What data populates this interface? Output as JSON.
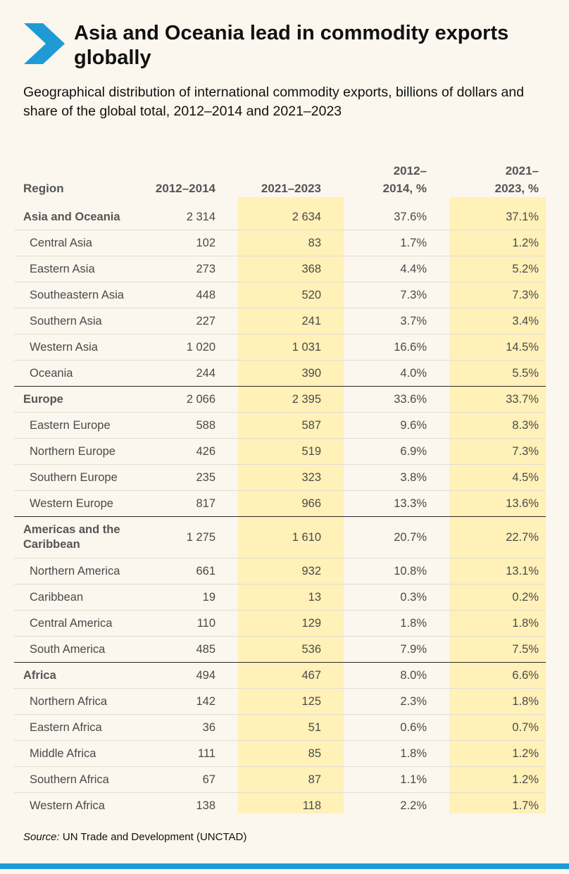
{
  "title": "Asia and Oceania lead in commodity exports globally",
  "subtitle": "Geographical distribution of international commodity exports, billions of dollars and share of the global total, 2012–2014 and 2021–2023",
  "brand_color": "#1E9BD7",
  "highlight_color": "#FFF1B8",
  "source_label": "Source:",
  "source_text": " UN Trade and Development (UNCTAD)",
  "chart_data": {
    "type": "table",
    "columns": [
      "Region",
      "2012–2014",
      "2021–2023",
      "2012–\n2014, %",
      "2021–\n2023, %"
    ],
    "rows": [
      {
        "region": "Asia and Oceania",
        "group": true,
        "v1": "2 314",
        "v2": "2 634",
        "p1": "37.6%",
        "p2": "37.1%"
      },
      {
        "region": "Central Asia",
        "group": false,
        "v1": "102",
        "v2": "83",
        "p1": "1.7%",
        "p2": "1.2%"
      },
      {
        "region": "Eastern Asia",
        "group": false,
        "v1": "273",
        "v2": "368",
        "p1": "4.4%",
        "p2": "5.2%"
      },
      {
        "region": "Southeastern Asia",
        "group": false,
        "v1": "448",
        "v2": "520",
        "p1": "7.3%",
        "p2": "7.3%"
      },
      {
        "region": "Southern Asia",
        "group": false,
        "v1": "227",
        "v2": "241",
        "p1": "3.7%",
        "p2": "3.4%"
      },
      {
        "region": "Western Asia",
        "group": false,
        "v1": "1 020",
        "v2": "1 031",
        "p1": "16.6%",
        "p2": "14.5%"
      },
      {
        "region": "Oceania",
        "group": false,
        "v1": "244",
        "v2": "390",
        "p1": "4.0%",
        "p2": "5.5%"
      },
      {
        "region": "Europe",
        "group": true,
        "v1": "2 066",
        "v2": "2 395",
        "p1": "33.6%",
        "p2": "33.7%"
      },
      {
        "region": "Eastern Europe",
        "group": false,
        "v1": "588",
        "v2": "587",
        "p1": "9.6%",
        "p2": "8.3%"
      },
      {
        "region": "Northern Europe",
        "group": false,
        "v1": "426",
        "v2": "519",
        "p1": "6.9%",
        "p2": "7.3%"
      },
      {
        "region": "Southern Europe",
        "group": false,
        "v1": "235",
        "v2": "323",
        "p1": "3.8%",
        "p2": "4.5%"
      },
      {
        "region": "Western Europe",
        "group": false,
        "v1": "817",
        "v2": "966",
        "p1": "13.3%",
        "p2": "13.6%"
      },
      {
        "region": "Americas and the\nCaribbean",
        "group": true,
        "v1": "1 275",
        "v2": "1 610",
        "p1": "20.7%",
        "p2": "22.7%"
      },
      {
        "region": "Northern America",
        "group": false,
        "v1": "661",
        "v2": "932",
        "p1": "10.8%",
        "p2": "13.1%"
      },
      {
        "region": "Caribbean",
        "group": false,
        "v1": "19",
        "v2": "13",
        "p1": "0.3%",
        "p2": "0.2%"
      },
      {
        "region": "Central America",
        "group": false,
        "v1": "110",
        "v2": "129",
        "p1": "1.8%",
        "p2": "1.8%"
      },
      {
        "region": "South America",
        "group": false,
        "v1": "485",
        "v2": "536",
        "p1": "7.9%",
        "p2": "7.5%"
      },
      {
        "region": "Africa",
        "group": true,
        "v1": "494",
        "v2": "467",
        "p1": "8.0%",
        "p2": "6.6%"
      },
      {
        "region": "Northern Africa",
        "group": false,
        "v1": "142",
        "v2": "125",
        "p1": "2.3%",
        "p2": "1.8%"
      },
      {
        "region": "Eastern Africa",
        "group": false,
        "v1": "36",
        "v2": "51",
        "p1": "0.6%",
        "p2": "0.7%"
      },
      {
        "region": "Middle Africa",
        "group": false,
        "v1": "111",
        "v2": "85",
        "p1": "1.8%",
        "p2": "1.2%"
      },
      {
        "region": "Southern Africa",
        "group": false,
        "v1": "67",
        "v2": "87",
        "p1": "1.1%",
        "p2": "1.2%"
      },
      {
        "region": "Western Africa",
        "group": false,
        "v1": "138",
        "v2": "118",
        "p1": "2.2%",
        "p2": "1.7%"
      }
    ]
  }
}
